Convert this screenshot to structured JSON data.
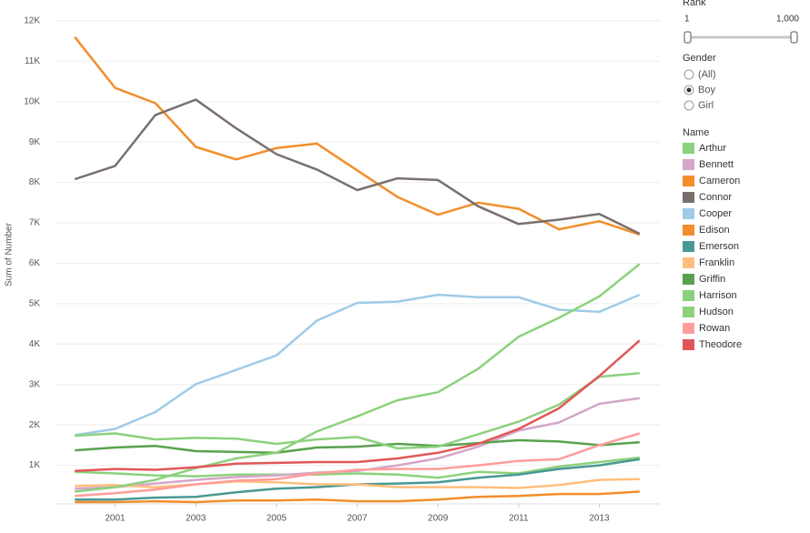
{
  "chart_data": {
    "type": "line",
    "y_label": "Sum of Number",
    "legend_title": "Name",
    "x": [
      2000,
      2001,
      2002,
      2003,
      2004,
      2005,
      2006,
      2007,
      2008,
      2009,
      2010,
      2011,
      2012,
      2013,
      2014
    ],
    "xlim": [
      1999.5,
      2014.5
    ],
    "xticks": [
      2001,
      2003,
      2005,
      2007,
      2009,
      2011,
      2013
    ],
    "ylim": [
      0,
      12200
    ],
    "yticks": [
      {
        "value": 1000,
        "label": "1K"
      },
      {
        "value": 2000,
        "label": "2K"
      },
      {
        "value": 3000,
        "label": "3K"
      },
      {
        "value": 4000,
        "label": "4K"
      },
      {
        "value": 5000,
        "label": "5K"
      },
      {
        "value": 6000,
        "label": "6K"
      },
      {
        "value": 7000,
        "label": "7K"
      },
      {
        "value": 8000,
        "label": "8K"
      },
      {
        "value": 9000,
        "label": "9K"
      },
      {
        "value": 10000,
        "label": "10K"
      },
      {
        "value": 11000,
        "label": "11K"
      },
      {
        "value": 12000,
        "label": "12K"
      }
    ],
    "grid": true,
    "series": [
      {
        "name": "Arthur",
        "color": "#8cd17d",
        "values": [
          840,
          800,
          750,
          730,
          770,
          770,
          770,
          800,
          770,
          690,
          840,
          800,
          970,
          1080,
          1190
        ]
      },
      {
        "name": "Bennett",
        "color": "#d4a6c8",
        "values": [
          420,
          460,
          550,
          640,
          710,
          750,
          820,
          860,
          1000,
          1170,
          1460,
          1860,
          2060,
          2520,
          2660
        ]
      },
      {
        "name": "Cameron",
        "color": "#f28e2b",
        "values": [
          11600,
          10340,
          9960,
          8880,
          8570,
          8850,
          8960,
          8300,
          7640,
          7200,
          7500,
          7350,
          6840,
          7040,
          6710
        ]
      },
      {
        "name": "Connor",
        "color": "#79706e",
        "values": [
          8080,
          8410,
          9670,
          10050,
          9340,
          8700,
          8320,
          7810,
          8100,
          8060,
          7410,
          6970,
          7080,
          7220,
          6730
        ]
      },
      {
        "name": "Cooper",
        "color": "#a0cbe8",
        "values": [
          1750,
          1900,
          2320,
          3010,
          3360,
          3720,
          4580,
          5020,
          5050,
          5220,
          5160,
          5160,
          4850,
          4800,
          5220
        ]
      },
      {
        "name": "Edison",
        "color": "#f28e2b",
        "values": [
          90,
          90,
          110,
          90,
          130,
          130,
          150,
          110,
          110,
          150,
          220,
          240,
          290,
          290,
          350
        ]
      },
      {
        "name": "Emerson",
        "color": "#499894",
        "values": [
          150,
          150,
          200,
          220,
          330,
          420,
          460,
          530,
          550,
          580,
          690,
          770,
          910,
          1000,
          1150
        ]
      },
      {
        "name": "Franklin",
        "color": "#ffbe7d",
        "values": [
          490,
          510,
          460,
          530,
          600,
          580,
          530,
          530,
          460,
          460,
          460,
          440,
          510,
          640,
          660
        ]
      },
      {
        "name": "Griffin",
        "color": "#59a14f",
        "values": [
          1370,
          1440,
          1480,
          1350,
          1330,
          1310,
          1440,
          1460,
          1530,
          1480,
          1550,
          1620,
          1590,
          1500,
          1570
        ]
      },
      {
        "name": "Harrison",
        "color": "#8cd17d",
        "values": [
          1730,
          1790,
          1640,
          1680,
          1660,
          1530,
          1640,
          1700,
          1420,
          1460,
          1770,
          2080,
          2500,
          3190,
          3280
        ]
      },
      {
        "name": "Hudson",
        "color": "#8cd17d",
        "values": [
          350,
          460,
          640,
          930,
          1170,
          1310,
          1840,
          2210,
          2610,
          2810,
          3390,
          4180,
          4650,
          5180,
          5980
        ]
      },
      {
        "name": "Rowan",
        "color": "#ff9d9a",
        "values": [
          240,
          310,
          400,
          530,
          620,
          660,
          800,
          890,
          910,
          910,
          1000,
          1110,
          1150,
          1500,
          1790
        ]
      },
      {
        "name": "Theodore",
        "color": "#e15759",
        "values": [
          860,
          910,
          890,
          950,
          1040,
          1060,
          1080,
          1080,
          1170,
          1310,
          1530,
          1900,
          2410,
          3210,
          4090
        ]
      }
    ]
  },
  "rank_filter": {
    "title": "Rank",
    "min_label": "1",
    "max_label": "1,000"
  },
  "gender_filter": {
    "title": "Gender",
    "options": [
      "(All)",
      "Boy",
      "Girl"
    ],
    "selected": 1
  }
}
